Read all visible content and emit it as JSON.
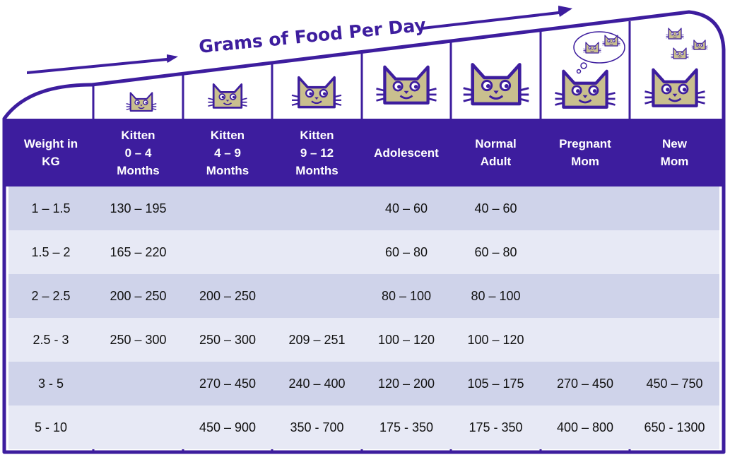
{
  "title": "Grams of Food Per Day",
  "colors": {
    "frame": "#3d1d9e",
    "cat_fill": "#c9bf8e",
    "row_dark": "#cfd3ea",
    "row_light": "#e7e9f5"
  },
  "icons": [
    "cat-face-icon",
    "arrow-right-icon",
    "thought-bubble-icon"
  ],
  "columns": [
    "Weight in\nKG",
    "Kitten\n0 – 4\nMonths",
    "Kitten\n4 – 9\nMonths",
    "Kitten\n9 – 12\nMonths",
    "Adolescent",
    "Normal\nAdult",
    "Pregnant\nMom",
    "New\nMom"
  ],
  "rows": [
    [
      "1 – 1.5",
      "130 – 195",
      "",
      "",
      "40 – 60",
      "40 – 60",
      "",
      ""
    ],
    [
      "1.5 – 2",
      "165 – 220",
      "",
      "",
      "60 – 80",
      "60 – 80",
      "",
      ""
    ],
    [
      "2 – 2.5",
      "200 – 250",
      "200 – 250",
      "",
      "80 – 100",
      "80 – 100",
      "",
      ""
    ],
    [
      "2.5 - 3",
      "250 – 300",
      "250 – 300",
      "209 – 251",
      "100 – 120",
      "100 – 120",
      "",
      ""
    ],
    [
      "3 - 5",
      "",
      "270 – 450",
      "240 – 400",
      "120 – 200",
      "105 – 175",
      "270 – 450",
      "450 – 750"
    ],
    [
      "5 - 10",
      "",
      "450 – 900",
      "350 - 700",
      "175 - 350",
      "175 - 350",
      "400 – 800",
      "650 - 1300"
    ]
  ]
}
